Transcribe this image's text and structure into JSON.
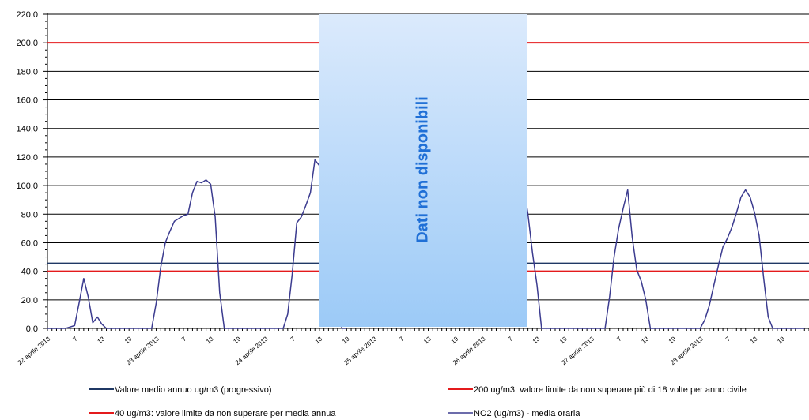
{
  "chart_data": {
    "type": "line",
    "ylim": [
      0,
      220
    ],
    "y_ticks": [
      "0,0",
      "20,0",
      "40,0",
      "60,0",
      "80,0",
      "100,0",
      "120,0",
      "140,0",
      "160,0",
      "180,0",
      "200,0",
      "220,0"
    ],
    "x_tick_labels": [
      "22 aprile 2013",
      "7",
      "13",
      "19",
      "23 aprile 2013",
      "7",
      "13",
      "19",
      "24 aprile 2013",
      "7",
      "13",
      "19",
      "25 aprile 2013",
      "7",
      "13",
      "19",
      "26 aprile 2013",
      "7",
      "13",
      "19",
      "27 aprile 2013",
      "7",
      "13",
      "19",
      "28 aprile 2013",
      "7",
      "13",
      "19"
    ],
    "grid": true,
    "series": [
      {
        "name": "Valore medio annuo ug/m3 (progressivo)",
        "color": "#1f3864",
        "style": "constant",
        "value": 45.5
      },
      {
        "name": "200 ug/m3: valore limite da non superare più di 18 volte per anno civile",
        "color": "#e41a1c",
        "style": "constant",
        "value": 200
      },
      {
        "name": "40 ug/m3: valore limite da non superare per media annua",
        "color": "#e41a1c",
        "style": "constant",
        "value": 40
      },
      {
        "name": "NO2 (ug/m3)  - media oraria",
        "color": "#3b3b8f",
        "style": "hourly",
        "points": [
          [
            0,
            0
          ],
          [
            1,
            0
          ],
          [
            2,
            0
          ],
          [
            3,
            0
          ],
          [
            4,
            0
          ],
          [
            5,
            1
          ],
          [
            6,
            2
          ],
          [
            7,
            18
          ],
          [
            8,
            35
          ],
          [
            9,
            22
          ],
          [
            10,
            4
          ],
          [
            11,
            8
          ],
          [
            12,
            3
          ],
          [
            13,
            0
          ],
          [
            14,
            0
          ],
          [
            15,
            0
          ],
          [
            16,
            0
          ],
          [
            17,
            0
          ],
          [
            18,
            0
          ],
          [
            19,
            0
          ],
          [
            20,
            0
          ],
          [
            21,
            0
          ],
          [
            22,
            0
          ],
          [
            23,
            0
          ],
          [
            24,
            18
          ],
          [
            25,
            43
          ],
          [
            26,
            60
          ],
          [
            27,
            68
          ],
          [
            28,
            75
          ],
          [
            29,
            77
          ],
          [
            30,
            79
          ],
          [
            31,
            80
          ],
          [
            32,
            95
          ],
          [
            33,
            103
          ],
          [
            34,
            102
          ],
          [
            35,
            104
          ],
          [
            36,
            101
          ],
          [
            37,
            78
          ],
          [
            38,
            25
          ],
          [
            39,
            0
          ],
          [
            40,
            0
          ],
          [
            41,
            0
          ],
          [
            42,
            0
          ],
          [
            43,
            0
          ],
          [
            44,
            0
          ],
          [
            45,
            0
          ],
          [
            46,
            0
          ],
          [
            47,
            0
          ],
          [
            48,
            0
          ],
          [
            49,
            0
          ],
          [
            50,
            0
          ],
          [
            51,
            0
          ],
          [
            52,
            0
          ],
          [
            53,
            10
          ],
          [
            54,
            38
          ],
          [
            55,
            74
          ],
          [
            56,
            78
          ],
          [
            57,
            86
          ],
          [
            58,
            95
          ],
          [
            59,
            118
          ],
          [
            60,
            114
          ],
          [
            61,
            103
          ],
          [
            62,
            92
          ],
          [
            63,
            56
          ],
          [
            64,
            9
          ],
          [
            65,
            0
          ],
          [
            66,
            0
          ],
          [
            104,
            105
          ],
          [
            105,
            100
          ],
          [
            106,
            80
          ],
          [
            107,
            53
          ],
          [
            108,
            30
          ],
          [
            109,
            0
          ],
          [
            110,
            0
          ],
          [
            111,
            0
          ],
          [
            112,
            0
          ],
          [
            113,
            0
          ],
          [
            114,
            0
          ],
          [
            115,
            0
          ],
          [
            116,
            0
          ],
          [
            117,
            0
          ],
          [
            118,
            0
          ],
          [
            119,
            0
          ],
          [
            120,
            0
          ],
          [
            121,
            0
          ],
          [
            122,
            0
          ],
          [
            123,
            0
          ],
          [
            124,
            22
          ],
          [
            125,
            50
          ],
          [
            126,
            70
          ],
          [
            127,
            84
          ],
          [
            128,
            97
          ],
          [
            129,
            64
          ],
          [
            130,
            41
          ],
          [
            131,
            33
          ],
          [
            132,
            20
          ],
          [
            133,
            0
          ],
          [
            134,
            0
          ],
          [
            135,
            0
          ],
          [
            136,
            0
          ],
          [
            137,
            0
          ],
          [
            138,
            0
          ],
          [
            139,
            0
          ],
          [
            140,
            0
          ],
          [
            141,
            0
          ],
          [
            142,
            0
          ],
          [
            143,
            0
          ],
          [
            144,
            0
          ],
          [
            145,
            6
          ],
          [
            146,
            16
          ],
          [
            147,
            30
          ],
          [
            148,
            44
          ],
          [
            149,
            57
          ],
          [
            150,
            63
          ],
          [
            151,
            71
          ],
          [
            152,
            81
          ],
          [
            153,
            92
          ],
          [
            154,
            97
          ],
          [
            155,
            92
          ],
          [
            156,
            81
          ],
          [
            157,
            65
          ],
          [
            158,
            35
          ],
          [
            159,
            8
          ],
          [
            160,
            0
          ],
          [
            161,
            0
          ],
          [
            162,
            0
          ],
          [
            163,
            0
          ],
          [
            164,
            0
          ],
          [
            165,
            0
          ],
          [
            166,
            0
          ],
          [
            167,
            0
          ]
        ]
      }
    ],
    "annotation": "Dati non disponibili"
  }
}
